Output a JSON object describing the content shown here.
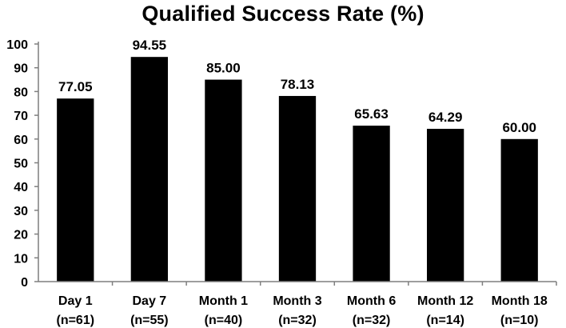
{
  "chart_data": {
    "type": "bar",
    "title": "Qualified Success  Rate (%)",
    "xlabel": "",
    "ylabel": "",
    "ylim": [
      0,
      100
    ],
    "yticks": [
      0,
      10,
      20,
      30,
      40,
      50,
      60,
      70,
      80,
      90,
      100
    ],
    "grid": false,
    "legend": "none",
    "categories": [
      [
        "Day 1",
        "(n=61)"
      ],
      [
        "Day 7",
        "(n=55)"
      ],
      [
        "Month 1",
        "(n=40)"
      ],
      [
        "Month 3",
        "(n=32)"
      ],
      [
        "Month 6",
        "(n=32)"
      ],
      [
        "Month 12",
        "(n=14)"
      ],
      [
        "Month 18",
        "(n=10)"
      ]
    ],
    "values": [
      77.05,
      94.55,
      85.0,
      78.13,
      65.63,
      64.29,
      60.0
    ],
    "value_labels": [
      "77.05",
      "94.55",
      "85.00",
      "78.13",
      "65.63",
      "64.29",
      "60.00"
    ],
    "colors": {
      "bar": "#000000",
      "axis": "#7f7f7f",
      "text": "#000000"
    }
  }
}
